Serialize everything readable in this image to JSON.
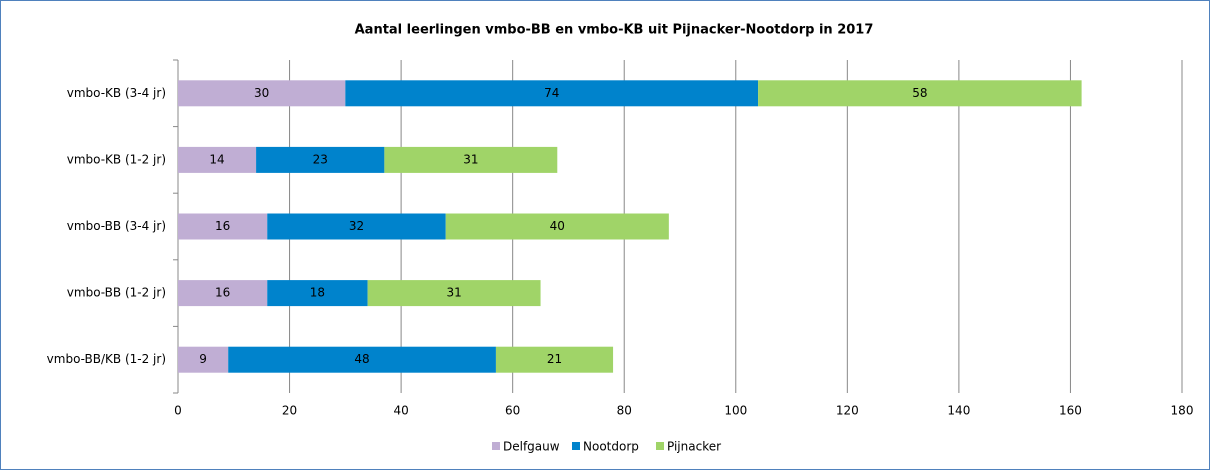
{
  "chart_data": {
    "type": "bar",
    "orientation": "horizontal",
    "stacked": true,
    "title": "Aantal leerlingen vmbo-BB en vmbo-KB uit Pijnacker-Nootdorp in 2017",
    "categories": [
      "vmbo-KB (3-4 jr)",
      "vmbo-KB (1-2 jr)",
      "vmbo-BB (3-4 jr)",
      "vmbo-BB (1-2 jr)",
      "vmbo-BB/KB (1-2 jr)"
    ],
    "series": [
      {
        "name": "Delfgauw",
        "color": "#c0aed4",
        "values": [
          30,
          14,
          16,
          16,
          9
        ]
      },
      {
        "name": "Nootdorp",
        "color": "#0083cc",
        "values": [
          74,
          23,
          32,
          18,
          48
        ]
      },
      {
        "name": "Pijnacker",
        "color": "#a0d468",
        "values": [
          58,
          31,
          40,
          31,
          21
        ]
      }
    ],
    "xlim": [
      0,
      180
    ],
    "xticks": [
      0,
      20,
      40,
      60,
      80,
      100,
      120,
      140,
      160,
      180
    ],
    "grid": true,
    "legend": "bottom"
  }
}
